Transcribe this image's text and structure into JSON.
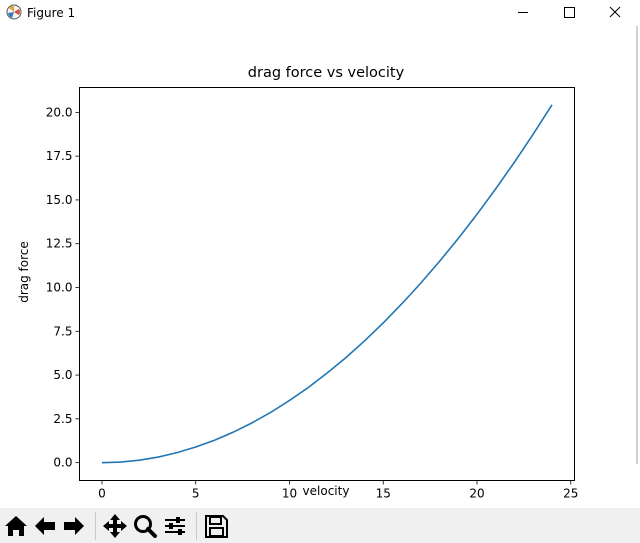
{
  "window": {
    "title": "Figure 1",
    "app_icon": "matplotlib-icon",
    "buttons": [
      "minimize-icon",
      "maximize-icon",
      "close-icon"
    ]
  },
  "toolbar": {
    "tools": [
      "home-icon",
      "back-arrow-icon",
      "forward-arrow-icon",
      "pan-icon",
      "zoom-icon",
      "configure-subplots-icon",
      "save-icon"
    ]
  },
  "chart_data": {
    "type": "line",
    "title": "drag force vs velocity",
    "xlabel": "velocity",
    "ylabel": "drag force",
    "xlim": [
      -1.2,
      25.2
    ],
    "ylim": [
      -1.02,
      21.42
    ],
    "grid": false,
    "x_ticks": [
      "0",
      "5",
      "10",
      "15",
      "20",
      "25"
    ],
    "y_ticks": [
      "0.0",
      "2.5",
      "5.0",
      "7.5",
      "10.0",
      "12.5",
      "15.0",
      "17.5",
      "20.0"
    ],
    "line_color": "#1f77b4",
    "series": [
      {
        "x": [
          0,
          1,
          2,
          3,
          4,
          5,
          6,
          7,
          8,
          9,
          10,
          11,
          12,
          13,
          14,
          15,
          16,
          17,
          18,
          19,
          20,
          21,
          22,
          23,
          24
        ],
        "values": [
          0.0,
          0.035,
          0.14,
          0.32,
          0.57,
          0.89,
          1.28,
          1.74,
          2.27,
          2.87,
          3.55,
          4.29,
          5.11,
          5.99,
          6.95,
          7.98,
          9.08,
          10.25,
          11.49,
          12.8,
          14.18,
          15.64,
          17.16,
          18.76,
          20.43
        ]
      }
    ]
  }
}
